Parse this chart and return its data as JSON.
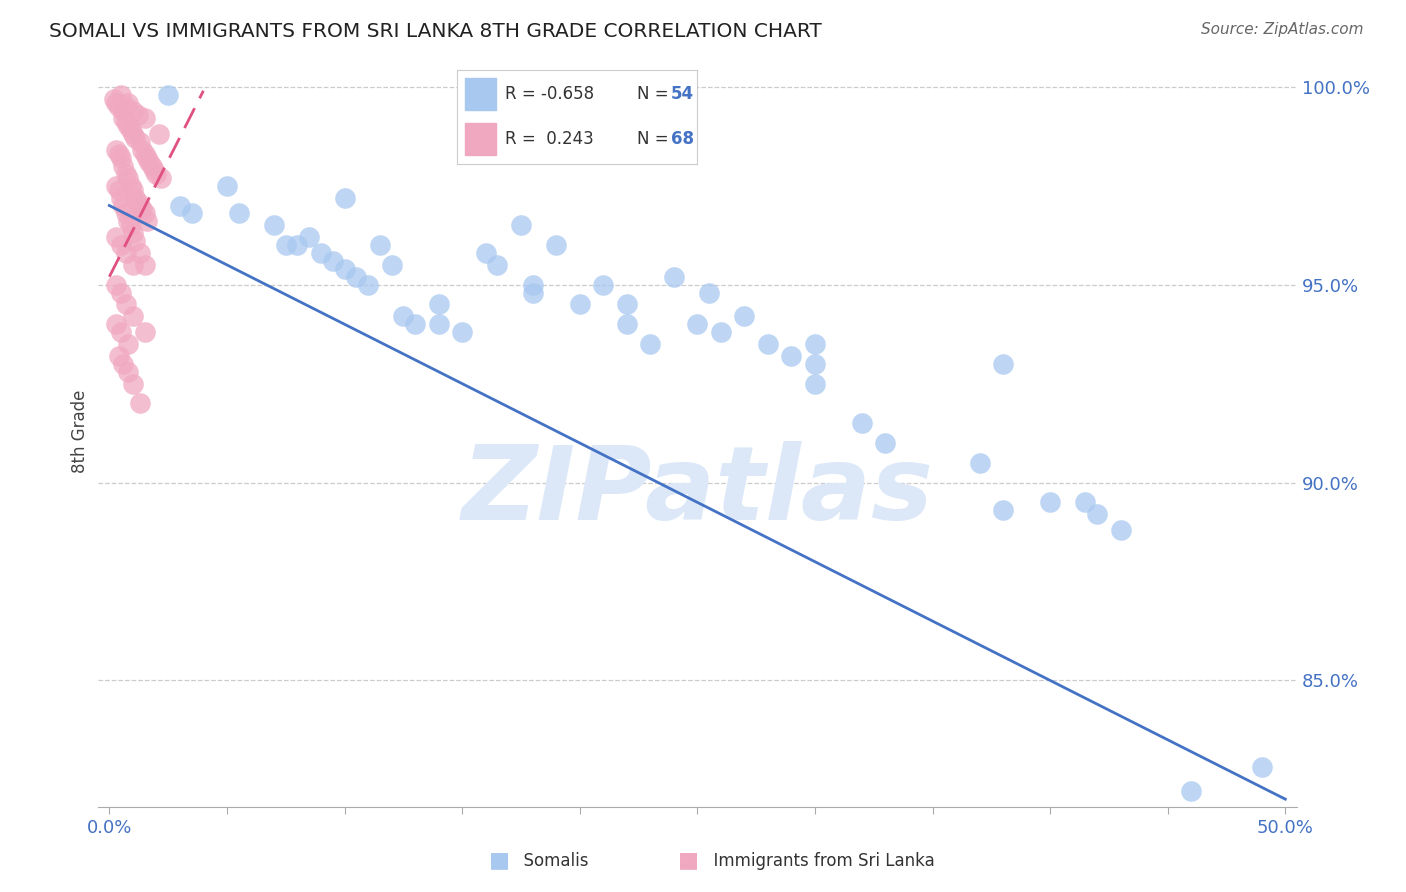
{
  "title": "SOMALI VS IMMIGRANTS FROM SRI LANKA 8TH GRADE CORRELATION CHART",
  "source": "Source: ZipAtlas.com",
  "ylabel": "8th Grade",
  "xlim": [
    -0.005,
    0.505
  ],
  "ylim": [
    0.818,
    1.008
  ],
  "yticks": [
    0.85,
    0.9,
    0.95,
    1.0
  ],
  "ytick_labels": [
    "85.0%",
    "90.0%",
    "95.0%",
    "100.0%"
  ],
  "xtick_vals": [
    0.0,
    0.05,
    0.1,
    0.15,
    0.2,
    0.25,
    0.3,
    0.35,
    0.4,
    0.45,
    0.5
  ],
  "xtick_labels": [
    "0.0%",
    "",
    "",
    "",
    "",
    "",
    "",
    "",
    "",
    "",
    "50.0%"
  ],
  "R_somali": -0.658,
  "N_somali": 54,
  "R_srilanka": 0.243,
  "N_srilanka": 68,
  "somali_color": "#a8c8f0",
  "srilanka_color": "#f0a8c0",
  "somali_line_color": "#4472c4",
  "srilanka_line_color": "#e05080",
  "legend_text_color": "#333333",
  "legend_value_color": "#4472c4",
  "axis_tick_color": "#4472c4",
  "watermark": "ZIPatlas",
  "watermark_color": "#dce8f8",
  "blue_line_x0": 0.0,
  "blue_line_y0": 0.97,
  "blue_line_x1": 0.5,
  "blue_line_y1": 0.82,
  "pink_line_x0": 0.0,
  "pink_line_y0": 0.952,
  "pink_line_x1": 0.04,
  "pink_line_y1": 0.999,
  "somali_points_x": [
    0.025,
    0.03,
    0.035,
    0.05,
    0.055,
    0.07,
    0.075,
    0.08,
    0.085,
    0.09,
    0.095,
    0.1,
    0.1,
    0.105,
    0.11,
    0.115,
    0.12,
    0.125,
    0.13,
    0.14,
    0.14,
    0.15,
    0.16,
    0.165,
    0.175,
    0.18,
    0.18,
    0.19,
    0.2,
    0.21,
    0.22,
    0.22,
    0.23,
    0.24,
    0.25,
    0.26,
    0.27,
    0.28,
    0.29,
    0.3,
    0.3,
    0.32,
    0.33,
    0.37,
    0.38,
    0.4,
    0.415,
    0.42,
    0.43,
    0.255,
    0.3,
    0.38,
    0.46,
    0.49
  ],
  "somali_points_y": [
    0.998,
    0.97,
    0.968,
    0.975,
    0.968,
    0.965,
    0.96,
    0.96,
    0.962,
    0.958,
    0.956,
    0.954,
    0.972,
    0.952,
    0.95,
    0.96,
    0.955,
    0.942,
    0.94,
    0.945,
    0.94,
    0.938,
    0.958,
    0.955,
    0.965,
    0.95,
    0.948,
    0.96,
    0.945,
    0.95,
    0.945,
    0.94,
    0.935,
    0.952,
    0.94,
    0.938,
    0.942,
    0.935,
    0.932,
    0.93,
    0.925,
    0.915,
    0.91,
    0.905,
    0.893,
    0.895,
    0.895,
    0.892,
    0.888,
    0.948,
    0.935,
    0.93,
    0.822,
    0.828
  ],
  "srilanka_points_x": [
    0.002,
    0.003,
    0.004,
    0.005,
    0.006,
    0.006,
    0.007,
    0.007,
    0.008,
    0.008,
    0.009,
    0.01,
    0.01,
    0.011,
    0.012,
    0.013,
    0.014,
    0.015,
    0.015,
    0.016,
    0.017,
    0.018,
    0.019,
    0.02,
    0.021,
    0.022,
    0.003,
    0.004,
    0.005,
    0.006,
    0.007,
    0.008,
    0.009,
    0.01,
    0.011,
    0.012,
    0.013,
    0.014,
    0.015,
    0.016,
    0.003,
    0.004,
    0.005,
    0.006,
    0.007,
    0.008,
    0.009,
    0.01,
    0.011,
    0.013,
    0.015,
    0.003,
    0.005,
    0.007,
    0.01,
    0.003,
    0.005,
    0.007,
    0.01,
    0.015,
    0.003,
    0.005,
    0.008,
    0.004,
    0.006,
    0.008,
    0.01,
    0.013
  ],
  "srilanka_points_y": [
    0.997,
    0.996,
    0.995,
    0.998,
    0.994,
    0.992,
    0.995,
    0.991,
    0.996,
    0.99,
    0.989,
    0.994,
    0.988,
    0.987,
    0.993,
    0.986,
    0.984,
    0.992,
    0.983,
    0.982,
    0.981,
    0.98,
    0.979,
    0.978,
    0.988,
    0.977,
    0.984,
    0.983,
    0.982,
    0.98,
    0.978,
    0.977,
    0.975,
    0.974,
    0.972,
    0.971,
    0.97,
    0.969,
    0.968,
    0.966,
    0.975,
    0.974,
    0.972,
    0.97,
    0.968,
    0.966,
    0.965,
    0.963,
    0.961,
    0.958,
    0.955,
    0.962,
    0.96,
    0.958,
    0.955,
    0.95,
    0.948,
    0.945,
    0.942,
    0.938,
    0.94,
    0.938,
    0.935,
    0.932,
    0.93,
    0.928,
    0.925,
    0.92
  ]
}
